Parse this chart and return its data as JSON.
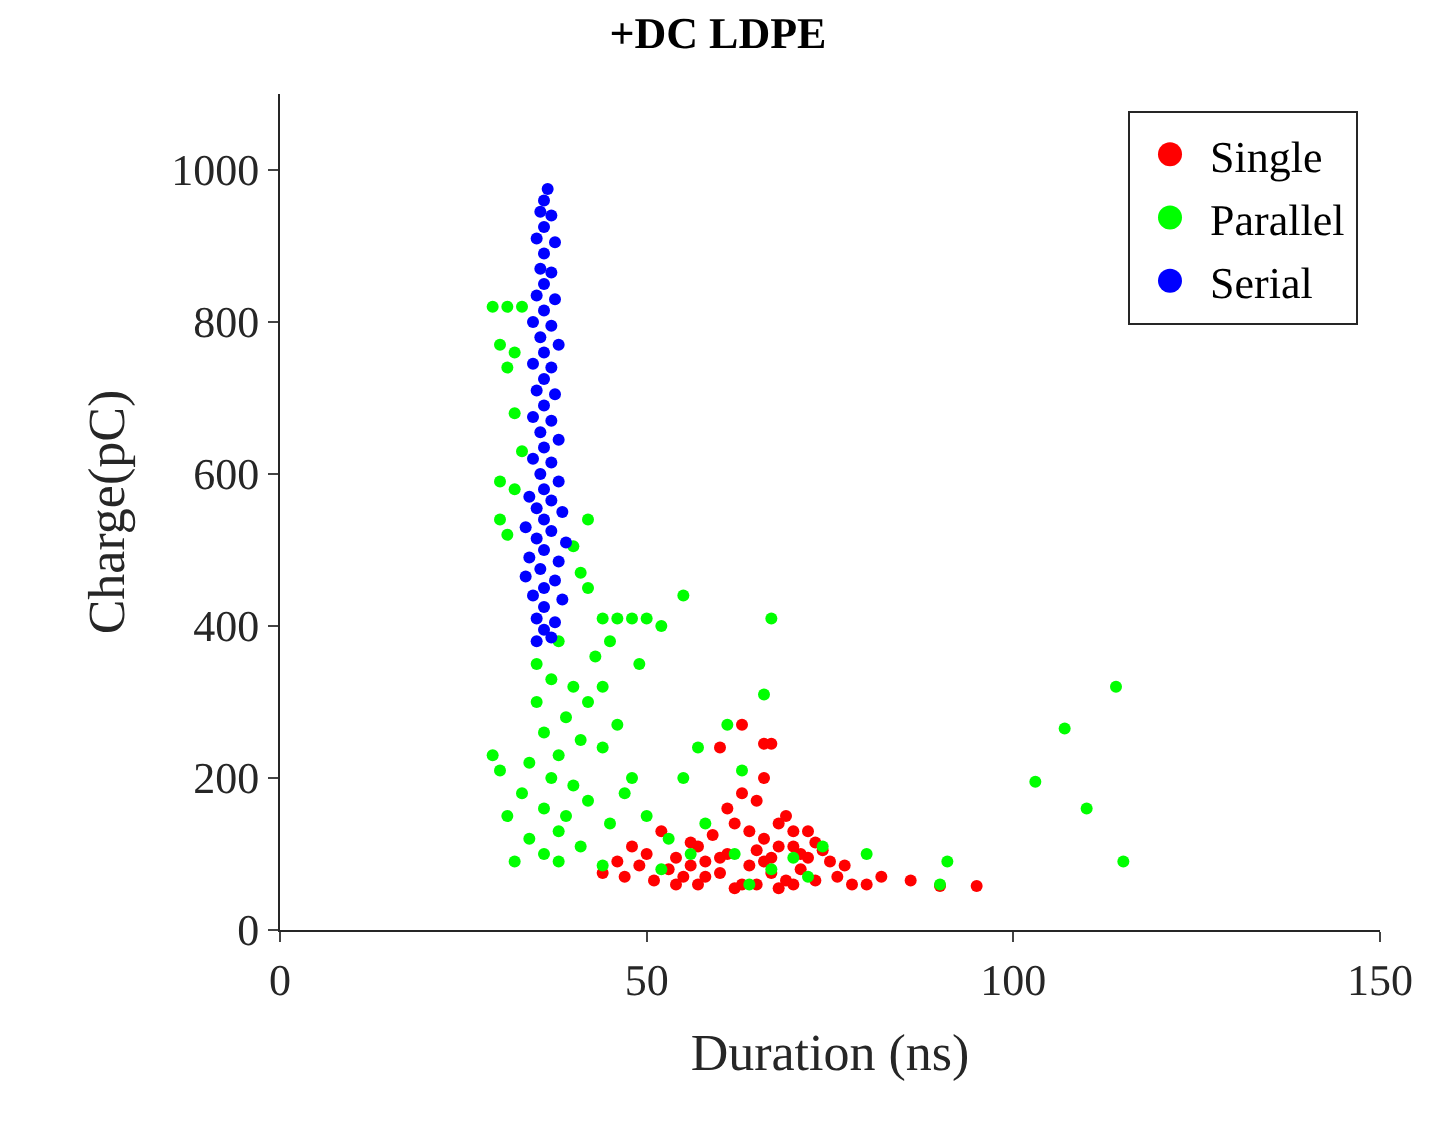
{
  "chart_data": {
    "type": "scatter",
    "title": "+DC LDPE",
    "xlabel": "Duration (ns)",
    "ylabel": "Charge(pC)",
    "xlim": [
      0,
      150
    ],
    "xticks": [
      0,
      50,
      100,
      150
    ],
    "ylim": [
      0,
      1100
    ],
    "yticks": [
      0,
      200,
      400,
      600,
      800,
      1000
    ],
    "legend": "top right",
    "marker": "circle",
    "series": [
      {
        "name": "Single",
        "color": "#ff0000",
        "x": [
          44,
          46,
          47,
          48,
          49,
          50,
          51,
          52,
          53,
          54,
          55,
          56,
          57,
          58,
          59,
          60,
          61,
          62,
          63,
          64,
          65,
          66,
          67,
          68,
          69,
          70,
          71,
          72,
          73,
          74,
          75,
          76,
          77,
          78,
          80,
          82,
          86,
          90,
          95,
          60,
          66,
          67,
          63,
          57,
          62,
          65,
          70,
          63,
          66,
          68,
          61,
          64,
          66,
          68,
          70,
          72,
          60,
          58,
          65,
          67,
          69,
          71,
          73,
          56,
          54
        ],
        "values": [
          75,
          90,
          70,
          110,
          85,
          100,
          65,
          130,
          80,
          95,
          70,
          115,
          60,
          90,
          125,
          75,
          100,
          140,
          60,
          85,
          170,
          120,
          95,
          55,
          150,
          110,
          80,
          130,
          65,
          105,
          90,
          70,
          85,
          60,
          60,
          70,
          65,
          58,
          58,
          240,
          245,
          245,
          270,
          110,
          55,
          60,
          60,
          180,
          200,
          140,
          160,
          130,
          90,
          110,
          130,
          95,
          95,
          70,
          105,
          75,
          65,
          100,
          115,
          85,
          60
        ]
      },
      {
        "name": "Parallel",
        "color": "#00ff00",
        "x": [
          29,
          31,
          33,
          30,
          32,
          31,
          32,
          33,
          30,
          32,
          30,
          31,
          42,
          40,
          41,
          42,
          44,
          46,
          48,
          50,
          52,
          55,
          67,
          49,
          45,
          43,
          38,
          35,
          37,
          40,
          42,
          39,
          36,
          41,
          38,
          34,
          44,
          46,
          48,
          37,
          40,
          33,
          42,
          36,
          39,
          31,
          45,
          38,
          34,
          41,
          36,
          32,
          38,
          44,
          50,
          53,
          55,
          57,
          61,
          63,
          66,
          58,
          62,
          67,
          70,
          74,
          80,
          90,
          91,
          103,
          107,
          110,
          114,
          115,
          29,
          30,
          35,
          44,
          47,
          52,
          64,
          72,
          56
        ],
        "values": [
          820,
          820,
          820,
          770,
          760,
          740,
          680,
          630,
          590,
          580,
          540,
          520,
          540,
          505,
          470,
          450,
          410,
          410,
          410,
          410,
          400,
          440,
          410,
          350,
          380,
          360,
          380,
          300,
          330,
          320,
          300,
          280,
          260,
          250,
          230,
          220,
          240,
          270,
          200,
          200,
          190,
          180,
          170,
          160,
          150,
          150,
          140,
          130,
          120,
          110,
          100,
          90,
          90,
          85,
          150,
          120,
          200,
          240,
          270,
          210,
          310,
          140,
          100,
          80,
          95,
          110,
          100,
          60,
          90,
          195,
          265,
          160,
          320,
          90,
          230,
          210,
          350,
          320,
          180,
          80,
          60,
          70,
          100
        ]
      },
      {
        "name": "Serial",
        "color": "#0000ff",
        "x": [
          36.5,
          36,
          35.5,
          37,
          36,
          35,
          37.5,
          36,
          35.5,
          37,
          36,
          35,
          37.5,
          36,
          34.5,
          37,
          35.5,
          38,
          36,
          34.5,
          37,
          36,
          35,
          37.5,
          36,
          34.5,
          37,
          35.5,
          38,
          36,
          34.5,
          37,
          35.5,
          38,
          36,
          34,
          37,
          35,
          38.5,
          36,
          33.5,
          37,
          35,
          39,
          36,
          34,
          38,
          35.5,
          33.5,
          37.5,
          36,
          34.5,
          38.5,
          36,
          35,
          37.5,
          36,
          35,
          37
        ],
        "values": [
          975,
          960,
          945,
          940,
          925,
          910,
          905,
          890,
          870,
          865,
          850,
          835,
          830,
          815,
          800,
          795,
          780,
          770,
          760,
          745,
          740,
          725,
          710,
          705,
          690,
          675,
          670,
          655,
          645,
          635,
          620,
          615,
          600,
          590,
          580,
          570,
          565,
          555,
          550,
          540,
          530,
          525,
          515,
          510,
          500,
          490,
          485,
          475,
          465,
          460,
          450,
          440,
          435,
          425,
          410,
          405,
          395,
          380,
          385
        ]
      }
    ]
  }
}
